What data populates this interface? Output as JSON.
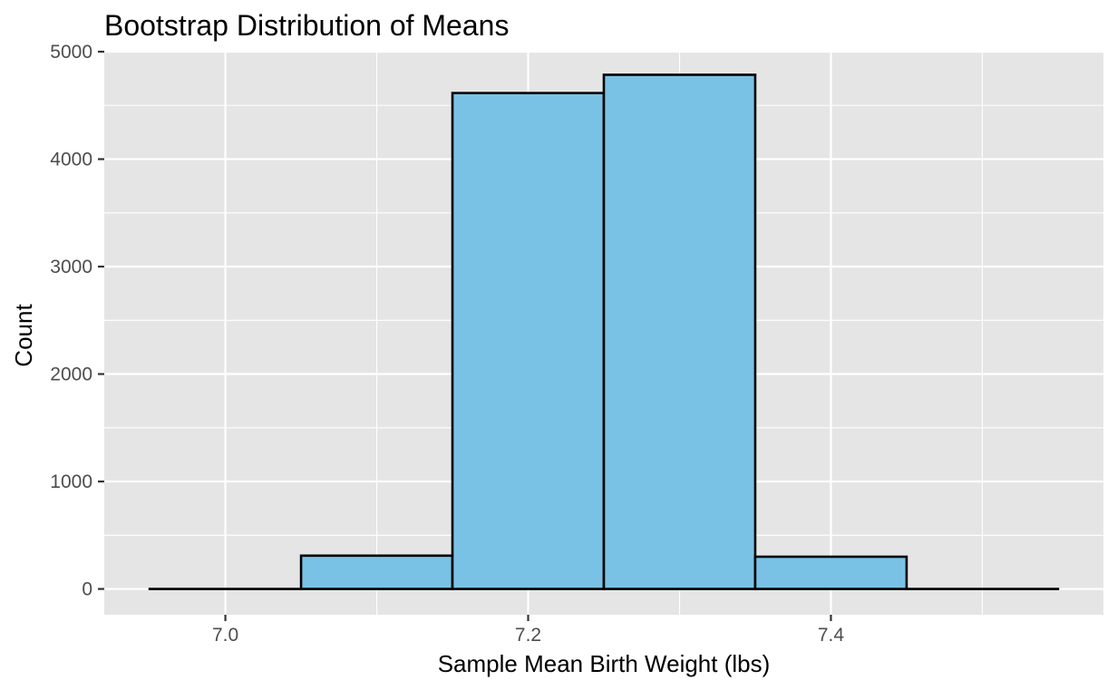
{
  "chart_data": {
    "type": "bar",
    "title": "Bootstrap Distribution of Means",
    "subtitle": "",
    "xlabel": "Sample Mean Birth Weight (lbs)",
    "ylabel": "Count",
    "bins": [
      {
        "x0": 6.95,
        "x1": 7.05,
        "count": 0
      },
      {
        "x0": 7.05,
        "x1": 7.15,
        "count": 310
      },
      {
        "x0": 7.15,
        "x1": 7.25,
        "count": 4615
      },
      {
        "x0": 7.25,
        "x1": 7.35,
        "count": 4785
      },
      {
        "x0": 7.35,
        "x1": 7.45,
        "count": 300
      },
      {
        "x0": 7.45,
        "x1": 7.55,
        "count": 0
      }
    ],
    "xlim": [
      6.92,
      7.58
    ],
    "ylim": [
      -240,
      5000
    ],
    "xticks": [
      7.0,
      7.2,
      7.4
    ],
    "xtick_labels": [
      "7.0",
      "7.2",
      "7.4"
    ],
    "yticks": [
      0,
      1000,
      2000,
      3000,
      4000,
      5000
    ],
    "ytick_labels": [
      "0",
      "1000",
      "2000",
      "3000",
      "4000",
      "5000"
    ],
    "grid": true,
    "legend": "none",
    "colors": {
      "panel_background": "#e5e5e5",
      "grid": "#ffffff",
      "bar_fill": "#7ac2e5",
      "bar_outline": "#000000"
    }
  }
}
